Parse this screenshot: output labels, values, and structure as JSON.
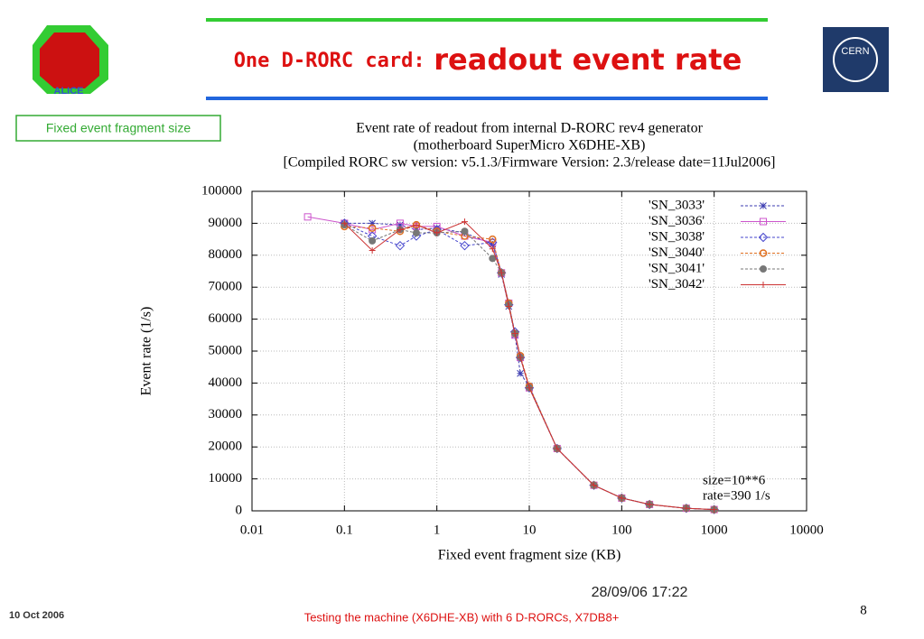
{
  "slide": {
    "title_prefix": "One D-RORC card:",
    "title_main": "readout event rate",
    "box_label": "Fixed event fragment size",
    "timestamp": "28/09/06 17:22",
    "footer_date": "10 Oct 2006",
    "footer_text": "Testing the machine (X6DHE-XB) with 6 D-RORCs, X7DB8+",
    "page_number": "8",
    "logo_left": "ALICE",
    "logo_right": "CERN"
  },
  "chart_data": {
    "type": "line",
    "title": [
      "Event rate of readout from internal D-RORC rev4 generator",
      "(motherboard SuperMicro X6DHE-XB)",
      "[Compiled RORC sw version: v5.1.3/Firmware Version: 2.3/release date=11Jul2006]"
    ],
    "x_label": "Fixed event fragment size (KB)",
    "y_label": "Event rate (1/s)",
    "annotations": [
      "size=10**6",
      "rate=390 1/s"
    ],
    "x_scale": "log",
    "xlim": [
      0.01,
      10000
    ],
    "xticks": [
      0.01,
      0.1,
      1,
      10,
      100,
      1000,
      10000
    ],
    "ylim": [
      0,
      100000
    ],
    "yticks": [
      0,
      10000,
      20000,
      30000,
      40000,
      50000,
      60000,
      70000,
      80000,
      90000,
      100000
    ],
    "grid": true,
    "legend": "top-right",
    "series": [
      {
        "name": "'SN_3033'",
        "color": "#3b3bb0",
        "marker": "star",
        "dash": true,
        "x": [
          0.1,
          0.2,
          0.4,
          0.6,
          1,
          2,
          4,
          5,
          6,
          7,
          8,
          10,
          20,
          50,
          100,
          200,
          500,
          1000
        ],
        "values": [
          90000,
          90000,
          89500,
          88000,
          88500,
          87000,
          83500,
          74000,
          64000,
          55000,
          43000,
          39000,
          19500,
          8000,
          4000,
          2000,
          800,
          400
        ]
      },
      {
        "name": "'SN_3036'",
        "color": "#cc55cc",
        "marker": "square",
        "dash": false,
        "x": [
          0.04,
          0.1,
          0.2,
          0.4,
          0.6,
          1,
          2,
          4,
          5,
          6,
          7,
          8,
          10,
          20,
          50,
          100,
          200,
          500,
          1000
        ],
        "values": [
          92000,
          90000,
          88000,
          90000,
          89000,
          89000,
          86000,
          84000,
          74500,
          65000,
          55000,
          48000,
          38500,
          19500,
          8000,
          4000,
          2000,
          800,
          400
        ]
      },
      {
        "name": "'SN_3038'",
        "color": "#4444cc",
        "marker": "diamond",
        "dash": true,
        "x": [
          0.1,
          0.2,
          0.4,
          0.6,
          1,
          2,
          4,
          5,
          6,
          7,
          8,
          10,
          20,
          50,
          100,
          200,
          500,
          1000
        ],
        "values": [
          90000,
          86000,
          83000,
          86000,
          88000,
          83000,
          84000,
          74500,
          64500,
          56000,
          48000,
          38500,
          19500,
          8000,
          4000,
          2000,
          800,
          400
        ]
      },
      {
        "name": "'SN_3040'",
        "color": "#e07020",
        "marker": "circle",
        "dash": true,
        "x": [
          0.1,
          0.2,
          0.4,
          0.6,
          1,
          2,
          4,
          5,
          6,
          7,
          8,
          10,
          20,
          50,
          100,
          200,
          500,
          1000
        ],
        "values": [
          89000,
          88500,
          87500,
          89500,
          87500,
          86000,
          85000,
          74500,
          65000,
          55500,
          48500,
          39000,
          19500,
          8000,
          4000,
          2000,
          800,
          400
        ]
      },
      {
        "name": "'SN_3041'",
        "color": "#777777",
        "marker": "dot",
        "dash": true,
        "x": [
          0.1,
          0.2,
          0.4,
          0.6,
          1,
          2,
          4,
          5,
          6,
          7,
          8,
          10,
          20,
          50,
          100,
          200,
          500,
          1000
        ],
        "values": [
          89500,
          84500,
          88000,
          87000,
          87000,
          87500,
          79000,
          74500,
          64500,
          55500,
          48000,
          38500,
          19500,
          8000,
          4000,
          2000,
          800,
          400
        ]
      },
      {
        "name": "'SN_3042'",
        "color": "#cc3333",
        "marker": "plus",
        "dash": false,
        "x": [
          0.1,
          0.2,
          0.4,
          0.6,
          1,
          2,
          4,
          5,
          6,
          7,
          8,
          10,
          20,
          50,
          100,
          200,
          500,
          1000
        ],
        "values": [
          90000,
          81500,
          88000,
          89500,
          87000,
          90500,
          82000,
          74500,
          64000,
          55500,
          48000,
          38500,
          19500,
          8000,
          4000,
          2000,
          800,
          400
        ]
      }
    ]
  }
}
